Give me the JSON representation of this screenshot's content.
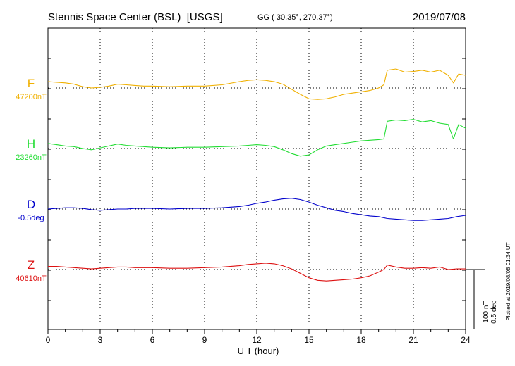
{
  "header": {
    "title": "Stennis Space Center (BSL)  [USGS]",
    "coords": "GG ( 30.35°, 270.37°)",
    "date": "2019/07/08"
  },
  "plotted_note": "Plotted at 2019/08/08 01:34 UT",
  "scale_bar": {
    "nt": "100 nT",
    "deg": "0.5 deg"
  },
  "chart_data": {
    "type": "line",
    "xlabel": "U T (hour)",
    "xlim": [
      0,
      24
    ],
    "xticks": [
      0,
      3,
      6,
      9,
      12,
      15,
      18,
      21,
      24
    ],
    "grid": true,
    "units_note": "vertical scale: 100 nT or 0.5 deg per bar height",
    "series": [
      {
        "name": "F",
        "baseline_label": "47200nT",
        "color": "#f0b000",
        "baseline_offset": 0,
        "x": [
          0,
          0.5,
          1,
          1.5,
          2,
          2.5,
          3,
          3.5,
          4,
          4.5,
          5,
          5.5,
          6,
          7,
          8,
          9,
          10,
          11,
          11.5,
          12,
          12.5,
          13,
          13.5,
          14,
          14.5,
          15,
          15.5,
          16,
          16.5,
          17,
          17.5,
          18,
          18.5,
          19,
          19.3,
          19.5,
          20,
          20.5,
          21,
          21.5,
          22,
          22.5,
          23,
          23.3,
          23.6,
          24
        ],
        "y": [
          10,
          9,
          8,
          6,
          2,
          0,
          1,
          3,
          6,
          5,
          4,
          3,
          3,
          2,
          3,
          3,
          5,
          10,
          12,
          13,
          12,
          10,
          6,
          -2,
          -10,
          -17,
          -18,
          -17,
          -14,
          -10,
          -8,
          -6,
          -4,
          0,
          5,
          28,
          30,
          25,
          26,
          28,
          25,
          28,
          20,
          8,
          22,
          20
        ]
      },
      {
        "name": "H",
        "baseline_label": "23260nT",
        "color": "#22dd33",
        "baseline_offset": 0,
        "x": [
          0,
          0.5,
          1,
          1.5,
          2,
          2.5,
          3,
          3.5,
          4,
          4.5,
          5,
          5.5,
          6,
          7,
          8,
          9,
          10,
          11,
          11.5,
          12,
          12.5,
          13,
          13.5,
          14,
          14.5,
          15,
          15.5,
          16,
          16.5,
          17,
          17.5,
          18,
          18.5,
          19,
          19.3,
          19.5,
          20,
          20.5,
          21,
          21.5,
          22,
          22.5,
          23,
          23.3,
          23.6,
          24
        ],
        "y": [
          8,
          6,
          4,
          3,
          0,
          -2,
          1,
          4,
          7,
          5,
          4,
          3,
          2,
          1,
          2,
          2,
          3,
          4,
          5,
          6,
          5,
          3,
          -2,
          -8,
          -12,
          -10,
          -2,
          4,
          6,
          8,
          10,
          12,
          13,
          14,
          15,
          43,
          45,
          44,
          46,
          42,
          44,
          40,
          38,
          15,
          38,
          32
        ]
      },
      {
        "name": "D",
        "baseline_label": "-0.5deg",
        "color": "#0000cc",
        "baseline_offset": 0,
        "x": [
          0,
          0.5,
          1,
          1.5,
          2,
          2.5,
          3,
          3.5,
          4,
          4.5,
          5,
          5.5,
          6,
          7,
          8,
          9,
          10,
          11,
          11.5,
          12,
          12.5,
          13,
          13.5,
          14,
          14.5,
          15,
          15.5,
          16,
          16.5,
          17,
          17.5,
          18,
          18.5,
          19,
          19.5,
          20,
          20.5,
          21,
          21.5,
          22,
          22.5,
          23,
          23.5,
          24
        ],
        "y": [
          0,
          1,
          2,
          2,
          1,
          -1,
          -2,
          -1,
          0,
          0,
          1,
          1,
          1,
          0,
          1,
          1,
          2,
          4,
          6,
          9,
          11,
          14,
          16,
          17,
          15,
          11,
          6,
          2,
          -2,
          -4,
          -7,
          -9,
          -11,
          -12,
          -15,
          -16,
          -17,
          -18,
          -18,
          -17,
          -16,
          -15,
          -12,
          -10
        ]
      },
      {
        "name": "Z",
        "baseline_label": "40610nT",
        "color": "#dd1111",
        "baseline_offset": 0,
        "x": [
          0,
          0.5,
          1,
          1.5,
          2,
          2.5,
          3,
          3.5,
          4,
          4.5,
          5,
          5.5,
          6,
          7,
          8,
          9,
          10,
          11,
          11.5,
          12,
          12.5,
          13,
          13.5,
          14,
          14.5,
          15,
          15.5,
          16,
          16.5,
          17,
          17.5,
          18,
          18.5,
          19,
          19.3,
          19.5,
          20,
          20.5,
          21,
          21.5,
          22,
          22.5,
          23,
          23.5,
          24
        ],
        "y": [
          5,
          5,
          4,
          3,
          2,
          1,
          2,
          3,
          4,
          4,
          3,
          3,
          3,
          2,
          2,
          3,
          4,
          6,
          8,
          9,
          10,
          9,
          6,
          1,
          -6,
          -13,
          -17,
          -18,
          -17,
          -16,
          -15,
          -13,
          -10,
          -4,
          0,
          7,
          4,
          2,
          2,
          3,
          2,
          4,
          0,
          1,
          1
        ]
      }
    ]
  }
}
